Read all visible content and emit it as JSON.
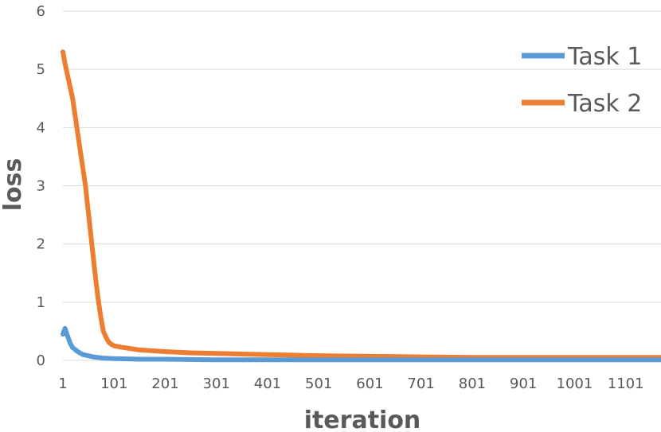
{
  "chart_data": {
    "type": "line",
    "title": "",
    "xlabel": "iteration",
    "ylabel": "loss",
    "xlim": [
      1,
      1170
    ],
    "ylim": [
      0,
      6
    ],
    "x_ticks": [
      "1",
      "101",
      "201",
      "301",
      "401",
      "501",
      "601",
      "701",
      "801",
      "901",
      "1001",
      "1101"
    ],
    "y_ticks": [
      "0",
      "1",
      "2",
      "3",
      "4",
      "5",
      "6"
    ],
    "grid": "horizontal",
    "legend": "top-right",
    "series": [
      {
        "name": "Task 1",
        "color": "#5b9bd5",
        "x": [
          1,
          5,
          10,
          15,
          20,
          30,
          40,
          50,
          60,
          80,
          101,
          150,
          201,
          301,
          401,
          501,
          601,
          701,
          801,
          901,
          1001,
          1101,
          1170
        ],
        "y": [
          0.45,
          0.55,
          0.42,
          0.3,
          0.22,
          0.15,
          0.1,
          0.08,
          0.06,
          0.04,
          0.03,
          0.02,
          0.02,
          0.01,
          0.01,
          0.01,
          0.01,
          0.01,
          0.01,
          0.01,
          0.01,
          0.01,
          0.01
        ]
      },
      {
        "name": "Task 2",
        "color": "#ed7d31",
        "x": [
          1,
          5,
          10,
          15,
          20,
          25,
          30,
          35,
          40,
          45,
          50,
          55,
          60,
          65,
          70,
          75,
          80,
          85,
          90,
          95,
          101,
          120,
          150,
          201,
          250,
          301,
          350,
          401,
          450,
          501,
          601,
          701,
          801,
          901,
          1001,
          1101,
          1170
        ],
        "y": [
          5.3,
          5.1,
          4.9,
          4.7,
          4.5,
          4.2,
          3.9,
          3.6,
          3.3,
          3.0,
          2.6,
          2.2,
          1.8,
          1.4,
          1.05,
          0.75,
          0.5,
          0.4,
          0.32,
          0.28,
          0.25,
          0.22,
          0.18,
          0.15,
          0.13,
          0.12,
          0.11,
          0.1,
          0.09,
          0.08,
          0.07,
          0.06,
          0.05,
          0.05,
          0.05,
          0.05,
          0.05
        ]
      }
    ]
  }
}
